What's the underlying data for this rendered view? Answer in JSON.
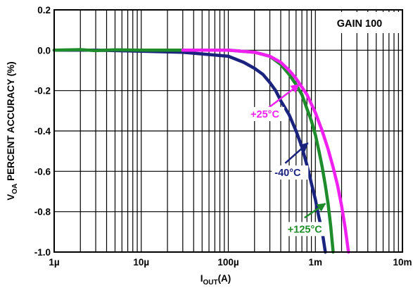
{
  "chart_data": {
    "type": "line",
    "x_scale": "log",
    "xlim": [
      1e-06,
      0.01
    ],
    "ylim": [
      -1.0,
      0.2
    ],
    "grid": true,
    "xlabel_main": "I",
    "xlabel_sub": "OUT",
    "xlabel_unit": "(A)",
    "ylabel_pre": "V",
    "ylabel_sub": "OA",
    "ylabel_post": " PERCENT ACCURACY (%)",
    "x_ticks": [
      {
        "value": 1e-06,
        "label": "1µ"
      },
      {
        "value": 1e-05,
        "label": "10µ"
      },
      {
        "value": 0.0001,
        "label": "100µ"
      },
      {
        "value": 0.001,
        "label": "1m"
      },
      {
        "value": 0.01,
        "label": "10m"
      }
    ],
    "y_ticks": [
      {
        "value": 0.2,
        "label": "0.2"
      },
      {
        "value": 0.0,
        "label": "0.0"
      },
      {
        "value": -0.2,
        "label": "-0.2"
      },
      {
        "value": -0.4,
        "label": "-0.4"
      },
      {
        "value": -0.6,
        "label": "-0.6"
      },
      {
        "value": -0.8,
        "label": "-0.8"
      },
      {
        "value": -1.0,
        "label": "-1.0"
      }
    ],
    "legend_box": "GAIN 100",
    "series": [
      {
        "name": "-40°C",
        "color": "#1a237e",
        "points": [
          [
            1e-06,
            0.0
          ],
          [
            3e-06,
            0.0
          ],
          [
            1e-05,
            -0.005
          ],
          [
            3e-05,
            -0.01
          ],
          [
            0.0001,
            -0.03
          ],
          [
            0.00015,
            -0.06
          ],
          [
            0.0002,
            -0.09
          ],
          [
            0.00025,
            -0.12
          ],
          [
            0.0003,
            -0.16
          ],
          [
            0.00035,
            -0.2
          ],
          [
            0.0004,
            -0.25
          ],
          [
            0.0005,
            -0.32
          ],
          [
            0.0006,
            -0.4
          ],
          [
            0.0007,
            -0.48
          ],
          [
            0.0008,
            -0.57
          ],
          [
            0.0009,
            -0.66
          ],
          [
            0.001,
            -0.74
          ],
          [
            0.0011,
            -0.83
          ],
          [
            0.0012,
            -0.9
          ],
          [
            0.0013,
            -1.0
          ]
        ]
      },
      {
        "name": "+125°C",
        "color": "#1e8c2a",
        "points": [
          [
            1e-06,
            0.0
          ],
          [
            2e-06,
            0.003
          ],
          [
            3e-06,
            -0.002
          ],
          [
            5e-06,
            0.002
          ],
          [
            1e-05,
            0.0
          ],
          [
            3e-05,
            0.0
          ],
          [
            0.0001,
            0.0
          ],
          [
            0.0002,
            -0.01
          ],
          [
            0.0003,
            -0.03
          ],
          [
            0.0004,
            -0.07
          ],
          [
            0.0005,
            -0.12
          ],
          [
            0.0006,
            -0.17
          ],
          [
            0.0007,
            -0.22
          ],
          [
            0.0008,
            -0.29
          ],
          [
            0.0009,
            -0.35
          ],
          [
            0.001,
            -0.42
          ],
          [
            0.0011,
            -0.5
          ],
          [
            0.0012,
            -0.58
          ],
          [
            0.0013,
            -0.67
          ],
          [
            0.0014,
            -0.76
          ],
          [
            0.0015,
            -0.87
          ],
          [
            0.0016,
            -1.0
          ]
        ]
      },
      {
        "name": "+25°C",
        "color": "#f020f0",
        "points": [
          [
            3e-05,
            0.0
          ],
          [
            0.0001,
            0.0
          ],
          [
            0.0002,
            -0.01
          ],
          [
            0.0003,
            -0.03
          ],
          [
            0.0004,
            -0.06
          ],
          [
            0.0005,
            -0.1
          ],
          [
            0.0006,
            -0.14
          ],
          [
            0.0008,
            -0.22
          ],
          [
            0.001,
            -0.31
          ],
          [
            0.0012,
            -0.4
          ],
          [
            0.0014,
            -0.49
          ],
          [
            0.0016,
            -0.58
          ],
          [
            0.0018,
            -0.67
          ],
          [
            0.002,
            -0.77
          ],
          [
            0.0022,
            -0.88
          ],
          [
            0.0024,
            -1.0
          ]
        ]
      }
    ],
    "annotations": [
      {
        "text": "+25°C",
        "color": "#f020f0",
        "label_x": 0.00018,
        "label_y": -0.33,
        "arrow_from_x": 0.00028,
        "arrow_from_y": -0.29,
        "arrow_to_x": 0.00065,
        "arrow_to_y": -0.17
      },
      {
        "text": "-40°C",
        "color": "#1a237e",
        "label_x": 0.00034,
        "label_y": -0.62,
        "arrow_from_x": 0.00045,
        "arrow_from_y": -0.56,
        "arrow_to_x": 0.00082,
        "arrow_to_y": -0.46
      },
      {
        "text": "+125°C",
        "color": "#1e8c2a",
        "label_x": 0.00048,
        "label_y": -0.9,
        "arrow_from_x": 0.00075,
        "arrow_from_y": -0.83,
        "arrow_to_x": 0.0013,
        "arrow_to_y": -0.76
      }
    ]
  }
}
